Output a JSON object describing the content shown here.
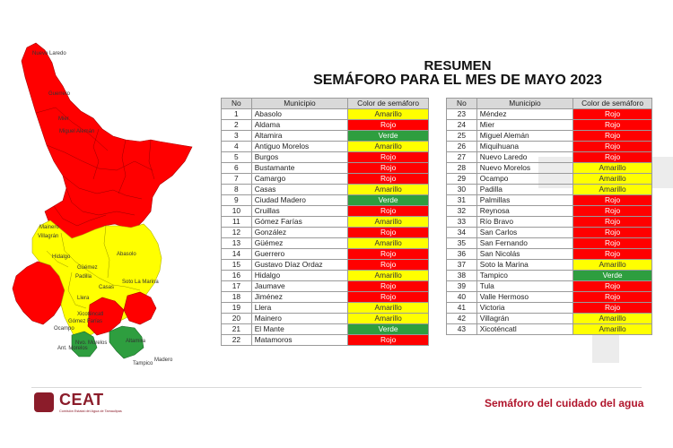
{
  "title": {
    "line1": "RESUMEN",
    "line2": "SEMÁFORO PARA EL MES DE MAYO 2023"
  },
  "table": {
    "headers": {
      "no": "No",
      "municipio": "Municipio",
      "color": "Color de semáforo"
    },
    "left": [
      {
        "no": "1",
        "municipio": "Abasolo",
        "color": "Amarillo"
      },
      {
        "no": "2",
        "municipio": "Aldama",
        "color": "Rojo"
      },
      {
        "no": "3",
        "municipio": "Altamira",
        "color": "Verde"
      },
      {
        "no": "4",
        "municipio": "Antiguo Morelos",
        "color": "Amarillo"
      },
      {
        "no": "5",
        "municipio": "Burgos",
        "color": "Rojo"
      },
      {
        "no": "6",
        "municipio": "Bustamante",
        "color": "Rojo"
      },
      {
        "no": "7",
        "municipio": "Camargo",
        "color": "Rojo"
      },
      {
        "no": "8",
        "municipio": "Casas",
        "color": "Amarillo"
      },
      {
        "no": "9",
        "municipio": "Ciudad Madero",
        "color": "Verde"
      },
      {
        "no": "10",
        "municipio": "Cruillas",
        "color": "Rojo"
      },
      {
        "no": "11",
        "municipio": "Gómez Farías",
        "color": "Amarillo"
      },
      {
        "no": "12",
        "municipio": "González",
        "color": "Rojo"
      },
      {
        "no": "13",
        "municipio": "Güémez",
        "color": "Amarillo"
      },
      {
        "no": "14",
        "municipio": "Guerrero",
        "color": "Rojo"
      },
      {
        "no": "15",
        "municipio": "Gustavo Díaz Ordaz",
        "color": "Rojo"
      },
      {
        "no": "16",
        "municipio": "Hidalgo",
        "color": "Amarillo"
      },
      {
        "no": "17",
        "municipio": "Jaumave",
        "color": "Rojo"
      },
      {
        "no": "18",
        "municipio": "Jiménez",
        "color": "Rojo"
      },
      {
        "no": "19",
        "municipio": "Llera",
        "color": "Amarillo"
      },
      {
        "no": "20",
        "municipio": "Mainero",
        "color": "Amarillo"
      },
      {
        "no": "21",
        "municipio": "El Mante",
        "color": "Verde"
      },
      {
        "no": "22",
        "municipio": "Matamoros",
        "color": "Rojo"
      }
    ],
    "right": [
      {
        "no": "23",
        "municipio": "Méndez",
        "color": "Rojo"
      },
      {
        "no": "24",
        "municipio": "Mier",
        "color": "Rojo"
      },
      {
        "no": "25",
        "municipio": "Miguel Alemán",
        "color": "Rojo"
      },
      {
        "no": "26",
        "municipio": "Miquihuana",
        "color": "Rojo"
      },
      {
        "no": "27",
        "municipio": "Nuevo Laredo",
        "color": "Rojo"
      },
      {
        "no": "28",
        "municipio": "Nuevo Morelos",
        "color": "Amarillo"
      },
      {
        "no": "29",
        "municipio": "Ocampo",
        "color": "Amarillo"
      },
      {
        "no": "30",
        "municipio": "Padilla",
        "color": "Amarillo"
      },
      {
        "no": "31",
        "municipio": "Palmillas",
        "color": "Rojo"
      },
      {
        "no": "32",
        "municipio": "Reynosa",
        "color": "Rojo"
      },
      {
        "no": "33",
        "municipio": "Río Bravo",
        "color": "Rojo"
      },
      {
        "no": "34",
        "municipio": "San Carlos",
        "color": "Rojo"
      },
      {
        "no": "35",
        "municipio": "San Fernando",
        "color": "Rojo"
      },
      {
        "no": "36",
        "municipio": "San Nicolás",
        "color": "Rojo"
      },
      {
        "no": "37",
        "municipio": "Soto la Marina",
        "color": "Amarillo"
      },
      {
        "no": "38",
        "municipio": "Tampico",
        "color": "Verde"
      },
      {
        "no": "39",
        "municipio": "Tula",
        "color": "Rojo"
      },
      {
        "no": "40",
        "municipio": "Valle Hermoso",
        "color": "Rojo"
      },
      {
        "no": "41",
        "municipio": "Victoria",
        "color": "Rojo"
      },
      {
        "no": "42",
        "municipio": "Villagrán",
        "color": "Amarillo"
      },
      {
        "no": "43",
        "municipio": "Xicoténcatl",
        "color": "Amarillo"
      }
    ]
  },
  "map": {
    "labels": {
      "laredo": "Nuevo Laredo",
      "guerrero": "Guerrero",
      "mier": "Mier",
      "miguel": "Miguel Alemán",
      "mainero": "Mainero",
      "villagran": "Villagrán",
      "hidalgo": "Hidalgo",
      "abasolo": "Abasolo",
      "guemez": "Güémez",
      "padilla": "Padilla",
      "casas": "Casas",
      "soto": "Soto La Marina",
      "llera": "Llera",
      "xicotencatl": "Xicoténcatl",
      "gomez": "Gómez Farías",
      "ocampo": "Ocampo",
      "antiguo": "Ant. Morelos",
      "nuevo_morelos": "Nvo. Morelos",
      "altamira": "Altamira",
      "tampico": "Tampico",
      "madero": "Madero"
    }
  },
  "footer": {
    "logo": "CEAT",
    "logo_sub": "Comisión Estatal del Agua de Tamaulipas",
    "tagline": "Semáforo del cuidado del agua"
  },
  "colors": {
    "rojo": "#ff0000",
    "amarillo": "#ffff00",
    "verde": "#2e9e3f",
    "brand": "#8b1c2a",
    "tagline": "#b0142b"
  }
}
